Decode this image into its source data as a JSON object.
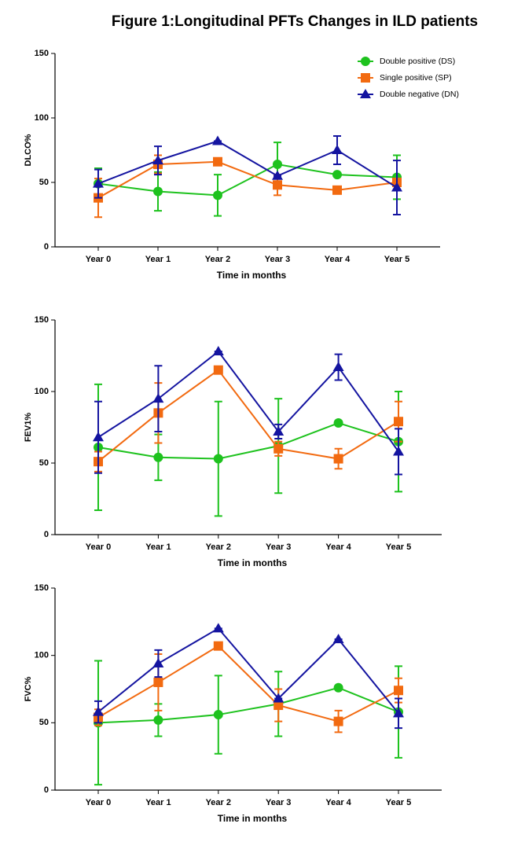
{
  "chart_data": [
    {
      "type": "line",
      "title": "Figure 1:Longitudinal PFTs Changes in ILD patients",
      "categories": [
        "Year 0",
        "Year 1",
        "Year 2",
        "Year 3",
        "Year 4",
        "Year 5"
      ],
      "x_label": "Time in months",
      "y_label": "DLCO%",
      "ylim": [
        0,
        150
      ],
      "yticks": [
        0,
        50,
        100,
        150
      ],
      "legend": "upper right",
      "series": [
        {
          "name": "Double positive (DS)",
          "color": "#1ec21e",
          "marker": "circle",
          "values": [
            49,
            43,
            40,
            64,
            56,
            54
          ],
          "errors": [
            12,
            15,
            16,
            17,
            0,
            17
          ]
        },
        {
          "name": "Single positive (SP)",
          "color": "#f26a10",
          "marker": "square",
          "values": [
            38,
            64,
            66,
            48,
            44,
            50
          ],
          "errors": [
            15,
            7,
            0,
            8,
            0,
            0
          ]
        },
        {
          "name": "Double negative (DN)",
          "color": "#1414a0",
          "marker": "triangle",
          "values": [
            49,
            67,
            82,
            55,
            75,
            46
          ],
          "errors": [
            11,
            11,
            0,
            0,
            11,
            21
          ]
        }
      ]
    },
    {
      "type": "line",
      "categories": [
        "Year 0",
        "Year 1",
        "Year 2",
        "Year 3",
        "Year 4",
        "Year 5"
      ],
      "x_label": "Time in months",
      "y_label": "FEV1%",
      "ylim": [
        0,
        150
      ],
      "yticks": [
        0,
        50,
        100,
        150
      ],
      "series": [
        {
          "color": "#1ec21e",
          "marker": "circle",
          "values": [
            61,
            54,
            53,
            62,
            78,
            65
          ],
          "errors": [
            44,
            16,
            40,
            33,
            0,
            35
          ]
        },
        {
          "color": "#f26a10",
          "marker": "square",
          "values": [
            51,
            85,
            115,
            60,
            53,
            79
          ],
          "errors": [
            7,
            21,
            0,
            5,
            7,
            14
          ]
        },
        {
          "color": "#1414a0",
          "marker": "triangle",
          "values": [
            68,
            95,
            128,
            72,
            117,
            58
          ],
          "errors": [
            25,
            23,
            0,
            5,
            9,
            16
          ]
        }
      ]
    },
    {
      "type": "line",
      "categories": [
        "Year 0",
        "Year 1",
        "Year 2",
        "Year 3",
        "Year 4",
        "Year 5"
      ],
      "x_label": "Time in months",
      "y_label": "FVC%",
      "ylim": [
        0,
        150
      ],
      "yticks": [
        0,
        50,
        100,
        150
      ],
      "series": [
        {
          "color": "#1ec21e",
          "marker": "circle",
          "values": [
            50,
            52,
            56,
            64,
            76,
            58
          ],
          "errors": [
            46,
            12,
            29,
            24,
            0,
            34
          ]
        },
        {
          "color": "#f26a10",
          "marker": "square",
          "values": [
            54,
            80,
            107,
            63,
            51,
            74
          ],
          "errors": [
            6,
            21,
            0,
            12,
            8,
            9
          ]
        },
        {
          "color": "#1414a0",
          "marker": "triangle",
          "values": [
            58,
            94,
            120,
            68,
            112,
            57
          ],
          "errors": [
            8,
            10,
            0,
            0,
            0,
            11
          ]
        }
      ]
    }
  ]
}
